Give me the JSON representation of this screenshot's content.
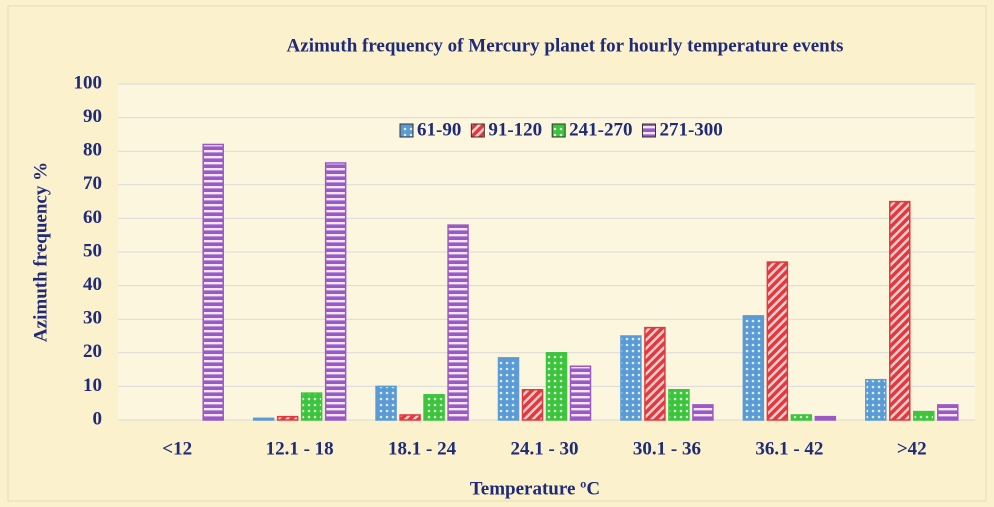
{
  "chart_data": {
    "type": "bar",
    "title": "Azimuth frequency of Mercury planet for hourly temperature events",
    "x_label": "Temperature ºC",
    "y_label": "Azimuth frequency %",
    "categories": [
      "<12",
      "12.1 - 18",
      "18.1 - 24",
      "24.1 - 30",
      "30.1 - 36",
      "36.1 - 42",
      ">42"
    ],
    "series": [
      {
        "name": "61-90",
        "color": "#5b9bd5",
        "values": [
          0,
          0.5,
          10,
          18.5,
          25,
          31,
          12
        ]
      },
      {
        "name": "91-120",
        "color": "#e0393e",
        "values": [
          0,
          1,
          1.5,
          9,
          27.5,
          47,
          65
        ]
      },
      {
        "name": "241-270",
        "color": "#3cc43c",
        "values": [
          0,
          8,
          7.5,
          20,
          9,
          1.5,
          2.5
        ]
      },
      {
        "name": "271-300",
        "color": "#9b59c6",
        "values": [
          82,
          76.5,
          58,
          16,
          4.5,
          1,
          4.5
        ]
      }
    ],
    "ylim": [
      0,
      100
    ],
    "yticks": [
      0,
      10,
      20,
      30,
      40,
      50,
      60,
      70,
      80,
      90,
      100
    ],
    "grid": true,
    "legend": "top"
  }
}
